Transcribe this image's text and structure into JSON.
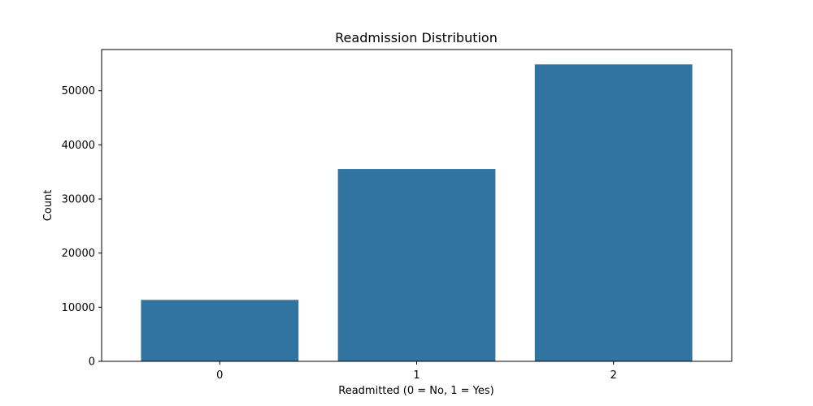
{
  "chart_data": {
    "type": "bar",
    "title": "Readmission Distribution",
    "xlabel": "Readmitted (0 = No, 1 = Yes)",
    "ylabel": "Count",
    "categories": [
      "0",
      "1",
      "2"
    ],
    "values": [
      11357,
      35545,
      54864
    ],
    "ylim": [
      0,
      57610
    ],
    "yticks": [
      0,
      10000,
      20000,
      30000,
      40000,
      50000
    ],
    "bar_color": "#3274a1",
    "grid": false,
    "legend": "none"
  }
}
